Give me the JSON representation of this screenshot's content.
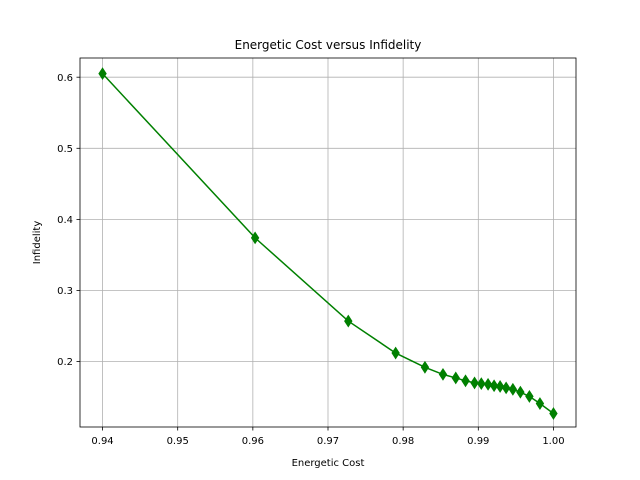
{
  "chart_data": {
    "type": "line",
    "title": "Energetic Cost versus Infidelity",
    "xlabel": "Energetic Cost",
    "ylabel": "Infidelity",
    "xlim": [
      0.937,
      1.003
    ],
    "ylim": [
      0.108,
      0.627
    ],
    "xticks": [
      0.94,
      0.95,
      0.96,
      0.97,
      0.98,
      0.99,
      1.0
    ],
    "xtick_labels": [
      "0.94",
      "0.95",
      "0.96",
      "0.97",
      "0.98",
      "0.99",
      "1.00"
    ],
    "yticks": [
      0.2,
      0.3,
      0.4,
      0.5,
      0.6
    ],
    "ytick_labels": [
      "0.2",
      "0.3",
      "0.4",
      "0.5",
      "0.6"
    ],
    "grid": true,
    "marker": "thin-diamond",
    "color": "#008000",
    "series": [
      {
        "x": [
          0.94,
          0.9603,
          0.9727,
          0.979,
          0.9829,
          0.9853,
          0.987,
          0.9883,
          0.9895,
          0.9904,
          0.9913,
          0.9921,
          0.9929,
          0.9937,
          0.9946,
          0.9956,
          0.9968,
          0.9982,
          1.0
        ],
        "y": [
          0.605,
          0.374,
          0.257,
          0.212,
          0.192,
          0.182,
          0.177,
          0.173,
          0.17,
          0.169,
          0.168,
          0.166,
          0.165,
          0.163,
          0.161,
          0.157,
          0.151,
          0.141,
          0.127
        ]
      }
    ]
  }
}
